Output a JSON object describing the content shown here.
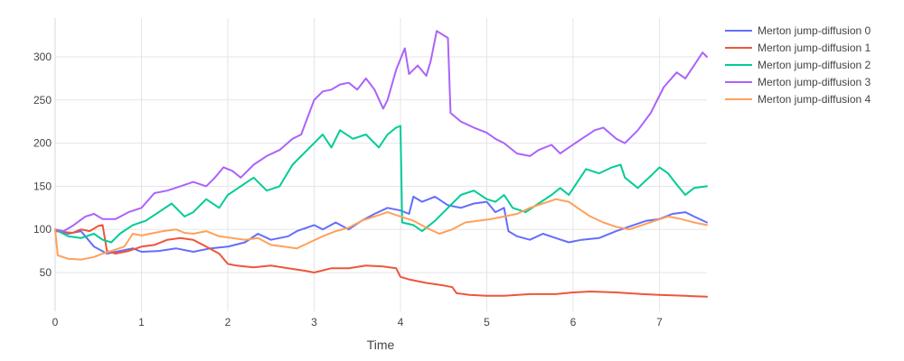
{
  "chart_data": {
    "type": "line",
    "title": "",
    "xlabel": "Time",
    "ylabel": "",
    "xlim": [
      0,
      7.55
    ],
    "ylim": [
      5,
      345
    ],
    "x_ticks": [
      0,
      1,
      2,
      3,
      4,
      5,
      6,
      7
    ],
    "y_ticks": [
      50,
      100,
      150,
      200,
      250,
      300
    ],
    "grid": true,
    "legend_position": "top-right",
    "series": [
      {
        "name": "Merton jump-diffusion 0",
        "color": "#636efa",
        "points": [
          [
            0,
            100
          ],
          [
            0.15,
            95
          ],
          [
            0.3,
            98
          ],
          [
            0.45,
            80
          ],
          [
            0.6,
            72
          ],
          [
            0.75,
            75
          ],
          [
            0.9,
            78
          ],
          [
            1.0,
            74
          ],
          [
            1.2,
            75
          ],
          [
            1.4,
            78
          ],
          [
            1.6,
            74
          ],
          [
            1.8,
            78
          ],
          [
            2.0,
            80
          ],
          [
            2.2,
            85
          ],
          [
            2.35,
            95
          ],
          [
            2.5,
            88
          ],
          [
            2.7,
            92
          ],
          [
            2.8,
            98
          ],
          [
            3.0,
            105
          ],
          [
            3.1,
            100
          ],
          [
            3.25,
            108
          ],
          [
            3.4,
            100
          ],
          [
            3.55,
            110
          ],
          [
            3.7,
            118
          ],
          [
            3.85,
            125
          ],
          [
            4.0,
            122
          ],
          [
            4.1,
            118
          ],
          [
            4.15,
            138
          ],
          [
            4.25,
            132
          ],
          [
            4.4,
            138
          ],
          [
            4.55,
            128
          ],
          [
            4.7,
            125
          ],
          [
            4.85,
            130
          ],
          [
            5.0,
            132
          ],
          [
            5.1,
            120
          ],
          [
            5.2,
            125
          ],
          [
            5.25,
            98
          ],
          [
            5.35,
            92
          ],
          [
            5.5,
            88
          ],
          [
            5.65,
            95
          ],
          [
            5.8,
            90
          ],
          [
            5.95,
            85
          ],
          [
            6.1,
            88
          ],
          [
            6.3,
            90
          ],
          [
            6.5,
            98
          ],
          [
            6.7,
            105
          ],
          [
            6.85,
            110
          ],
          [
            7.0,
            112
          ],
          [
            7.15,
            118
          ],
          [
            7.3,
            120
          ],
          [
            7.4,
            115
          ],
          [
            7.55,
            108
          ]
        ]
      },
      {
        "name": "Merton jump-diffusion 1",
        "color": "#ef553b",
        "points": [
          [
            0,
            98
          ],
          [
            0.1,
            97
          ],
          [
            0.2,
            96
          ],
          [
            0.3,
            100
          ],
          [
            0.4,
            98
          ],
          [
            0.5,
            104
          ],
          [
            0.55,
            105
          ],
          [
            0.6,
            75
          ],
          [
            0.7,
            72
          ],
          [
            0.85,
            75
          ],
          [
            1.0,
            80
          ],
          [
            1.15,
            82
          ],
          [
            1.3,
            88
          ],
          [
            1.45,
            90
          ],
          [
            1.6,
            88
          ],
          [
            1.75,
            80
          ],
          [
            1.9,
            72
          ],
          [
            2.0,
            60
          ],
          [
            2.1,
            58
          ],
          [
            2.3,
            56
          ],
          [
            2.5,
            58
          ],
          [
            2.7,
            55
          ],
          [
            2.9,
            52
          ],
          [
            3.0,
            50
          ],
          [
            3.2,
            55
          ],
          [
            3.4,
            55
          ],
          [
            3.6,
            58
          ],
          [
            3.8,
            57
          ],
          [
            3.95,
            55
          ],
          [
            4.0,
            45
          ],
          [
            4.1,
            42
          ],
          [
            4.3,
            38
          ],
          [
            4.5,
            35
          ],
          [
            4.6,
            33
          ],
          [
            4.65,
            26
          ],
          [
            4.8,
            24
          ],
          [
            5.0,
            23
          ],
          [
            5.2,
            23
          ],
          [
            5.5,
            25
          ],
          [
            5.8,
            25
          ],
          [
            6.0,
            27
          ],
          [
            6.2,
            28
          ],
          [
            6.5,
            27
          ],
          [
            6.8,
            25
          ],
          [
            7.0,
            24
          ],
          [
            7.3,
            23
          ],
          [
            7.55,
            22
          ]
        ]
      },
      {
        "name": "Merton jump-diffusion 2",
        "color": "#00cc96",
        "points": [
          [
            0,
            100
          ],
          [
            0.15,
            92
          ],
          [
            0.3,
            90
          ],
          [
            0.45,
            95
          ],
          [
            0.55,
            88
          ],
          [
            0.65,
            85
          ],
          [
            0.75,
            95
          ],
          [
            0.9,
            105
          ],
          [
            1.05,
            110
          ],
          [
            1.2,
            120
          ],
          [
            1.35,
            130
          ],
          [
            1.5,
            115
          ],
          [
            1.6,
            120
          ],
          [
            1.75,
            135
          ],
          [
            1.9,
            125
          ],
          [
            2.0,
            140
          ],
          [
            2.15,
            150
          ],
          [
            2.3,
            160
          ],
          [
            2.45,
            145
          ],
          [
            2.6,
            150
          ],
          [
            2.75,
            175
          ],
          [
            2.9,
            190
          ],
          [
            3.0,
            200
          ],
          [
            3.1,
            210
          ],
          [
            3.2,
            195
          ],
          [
            3.3,
            215
          ],
          [
            3.45,
            205
          ],
          [
            3.6,
            210
          ],
          [
            3.75,
            195
          ],
          [
            3.85,
            210
          ],
          [
            3.95,
            218
          ],
          [
            4.0,
            220
          ],
          [
            4.02,
            108
          ],
          [
            4.15,
            105
          ],
          [
            4.25,
            98
          ],
          [
            4.4,
            110
          ],
          [
            4.55,
            125
          ],
          [
            4.7,
            140
          ],
          [
            4.85,
            145
          ],
          [
            5.0,
            135
          ],
          [
            5.1,
            132
          ],
          [
            5.2,
            140
          ],
          [
            5.3,
            125
          ],
          [
            5.45,
            120
          ],
          [
            5.6,
            130
          ],
          [
            5.75,
            140
          ],
          [
            5.85,
            148
          ],
          [
            5.95,
            140
          ],
          [
            6.05,
            155
          ],
          [
            6.15,
            170
          ],
          [
            6.3,
            165
          ],
          [
            6.45,
            172
          ],
          [
            6.55,
            175
          ],
          [
            6.6,
            160
          ],
          [
            6.75,
            148
          ],
          [
            6.9,
            162
          ],
          [
            7.0,
            172
          ],
          [
            7.1,
            165
          ],
          [
            7.2,
            152
          ],
          [
            7.3,
            140
          ],
          [
            7.4,
            148
          ],
          [
            7.55,
            150
          ]
        ]
      },
      {
        "name": "Merton jump-diffusion 3",
        "color": "#ab63fa",
        "points": [
          [
            0,
            100
          ],
          [
            0.1,
            98
          ],
          [
            0.2,
            104
          ],
          [
            0.35,
            115
          ],
          [
            0.45,
            118
          ],
          [
            0.55,
            112
          ],
          [
            0.7,
            112
          ],
          [
            0.85,
            120
          ],
          [
            1.0,
            125
          ],
          [
            1.15,
            142
          ],
          [
            1.3,
            145
          ],
          [
            1.45,
            150
          ],
          [
            1.6,
            155
          ],
          [
            1.75,
            150
          ],
          [
            1.85,
            160
          ],
          [
            1.95,
            172
          ],
          [
            2.05,
            168
          ],
          [
            2.15,
            160
          ],
          [
            2.3,
            175
          ],
          [
            2.45,
            185
          ],
          [
            2.6,
            192
          ],
          [
            2.75,
            205
          ],
          [
            2.85,
            210
          ],
          [
            3.0,
            250
          ],
          [
            3.1,
            260
          ],
          [
            3.2,
            262
          ],
          [
            3.3,
            268
          ],
          [
            3.4,
            270
          ],
          [
            3.5,
            262
          ],
          [
            3.6,
            275
          ],
          [
            3.7,
            262
          ],
          [
            3.8,
            240
          ],
          [
            3.85,
            250
          ],
          [
            3.95,
            285
          ],
          [
            4.05,
            310
          ],
          [
            4.1,
            280
          ],
          [
            4.2,
            290
          ],
          [
            4.3,
            278
          ],
          [
            4.35,
            295
          ],
          [
            4.42,
            330
          ],
          [
            4.5,
            325
          ],
          [
            4.55,
            322
          ],
          [
            4.58,
            235
          ],
          [
            4.7,
            225
          ],
          [
            4.85,
            218
          ],
          [
            5.0,
            212
          ],
          [
            5.1,
            205
          ],
          [
            5.2,
            200
          ],
          [
            5.35,
            188
          ],
          [
            5.5,
            185
          ],
          [
            5.6,
            192
          ],
          [
            5.75,
            198
          ],
          [
            5.85,
            188
          ],
          [
            5.95,
            195
          ],
          [
            6.1,
            205
          ],
          [
            6.25,
            215
          ],
          [
            6.35,
            218
          ],
          [
            6.5,
            205
          ],
          [
            6.6,
            200
          ],
          [
            6.75,
            215
          ],
          [
            6.9,
            235
          ],
          [
            7.05,
            265
          ],
          [
            7.2,
            282
          ],
          [
            7.3,
            275
          ],
          [
            7.4,
            290
          ],
          [
            7.5,
            305
          ],
          [
            7.55,
            300
          ]
        ]
      },
      {
        "name": "Merton jump-diffusion 4",
        "color": "#ffa15a",
        "points": [
          [
            0,
            100
          ],
          [
            0.03,
            70
          ],
          [
            0.15,
            66
          ],
          [
            0.3,
            65
          ],
          [
            0.45,
            68
          ],
          [
            0.55,
            72
          ],
          [
            0.65,
            75
          ],
          [
            0.8,
            80
          ],
          [
            0.9,
            95
          ],
          [
            1.0,
            93
          ],
          [
            1.1,
            95
          ],
          [
            1.25,
            98
          ],
          [
            1.4,
            100
          ],
          [
            1.5,
            96
          ],
          [
            1.6,
            95
          ],
          [
            1.75,
            98
          ],
          [
            1.9,
            92
          ],
          [
            2.05,
            90
          ],
          [
            2.2,
            88
          ],
          [
            2.35,
            90
          ],
          [
            2.5,
            82
          ],
          [
            2.65,
            80
          ],
          [
            2.8,
            78
          ],
          [
            2.95,
            85
          ],
          [
            3.1,
            92
          ],
          [
            3.25,
            98
          ],
          [
            3.4,
            102
          ],
          [
            3.55,
            110
          ],
          [
            3.7,
            115
          ],
          [
            3.85,
            120
          ],
          [
            4.0,
            115
          ],
          [
            4.15,
            110
          ],
          [
            4.3,
            102
          ],
          [
            4.45,
            95
          ],
          [
            4.6,
            100
          ],
          [
            4.75,
            108
          ],
          [
            4.9,
            110
          ],
          [
            5.05,
            112
          ],
          [
            5.2,
            115
          ],
          [
            5.35,
            118
          ],
          [
            5.5,
            125
          ],
          [
            5.65,
            130
          ],
          [
            5.8,
            135
          ],
          [
            5.95,
            132
          ],
          [
            6.05,
            125
          ],
          [
            6.2,
            115
          ],
          [
            6.35,
            108
          ],
          [
            6.5,
            103
          ],
          [
            6.65,
            100
          ],
          [
            6.8,
            105
          ],
          [
            6.95,
            110
          ],
          [
            7.1,
            115
          ],
          [
            7.25,
            112
          ],
          [
            7.4,
            108
          ],
          [
            7.55,
            105
          ]
        ]
      }
    ]
  }
}
